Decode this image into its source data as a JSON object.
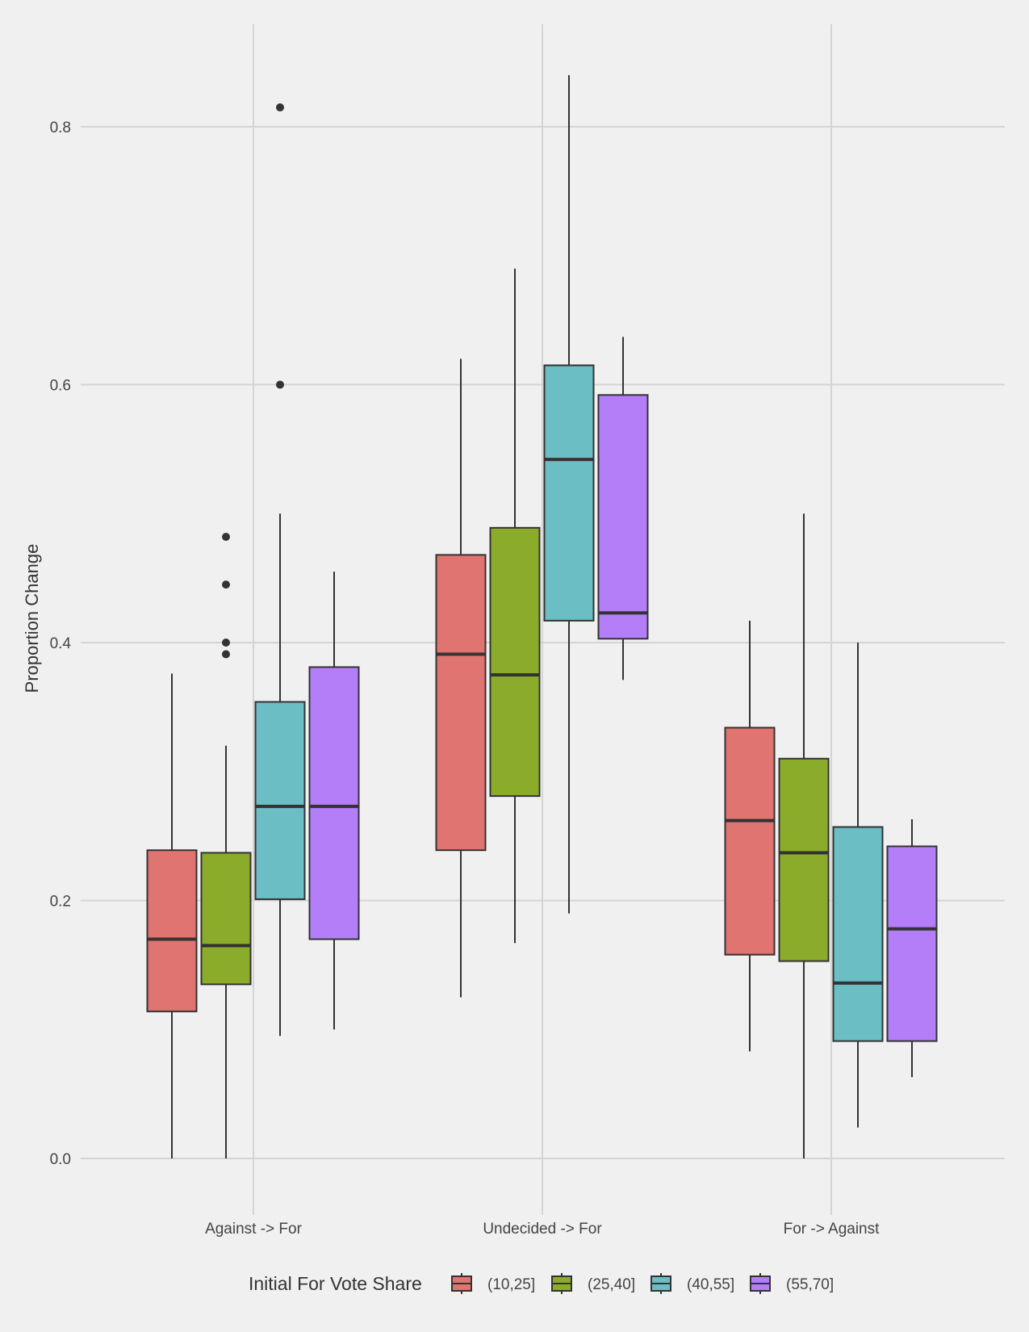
{
  "chart_data": {
    "type": "boxplot",
    "title": "",
    "xlabel": "",
    "ylabel": "Proportion Change",
    "ylim": [
      -0.04,
      0.9
    ],
    "y_ticks": [
      0.0,
      0.2,
      0.4,
      0.6,
      0.8
    ],
    "y_tick_labels": [
      "0.0",
      "0.2",
      "0.4",
      "0.6",
      "0.8"
    ],
    "categories": [
      "Against -> For",
      "Undecided -> For",
      "For -> Against"
    ],
    "grid": true,
    "legend": {
      "title": "Initial For Vote Share",
      "position": "bottom"
    },
    "series": [
      {
        "name": "(10,25]",
        "color": "#e07470",
        "boxes": [
          {
            "lower_whisker": 0.0,
            "q1": 0.114,
            "median": 0.17,
            "q3": 0.239,
            "upper_whisker": 0.376,
            "outliers": []
          },
          {
            "lower_whisker": 0.125,
            "q1": 0.239,
            "median": 0.391,
            "q3": 0.468,
            "upper_whisker": 0.62,
            "outliers": []
          },
          {
            "lower_whisker": 0.083,
            "q1": 0.158,
            "median": 0.262,
            "q3": 0.334,
            "upper_whisker": 0.417,
            "outliers": []
          }
        ]
      },
      {
        "name": "(25,40]",
        "color": "#8aac2a",
        "boxes": [
          {
            "lower_whisker": 0.0,
            "q1": 0.135,
            "median": 0.165,
            "q3": 0.237,
            "upper_whisker": 0.32,
            "outliers": [
              0.391,
              0.4,
              0.445,
              0.482
            ]
          },
          {
            "lower_whisker": 0.167,
            "q1": 0.281,
            "median": 0.375,
            "q3": 0.489,
            "upper_whisker": 0.69,
            "outliers": []
          },
          {
            "lower_whisker": 0.0,
            "q1": 0.153,
            "median": 0.237,
            "q3": 0.31,
            "upper_whisker": 0.5,
            "outliers": []
          }
        ]
      },
      {
        "name": "(40,55]",
        "color": "#6bbec4",
        "boxes": [
          {
            "lower_whisker": 0.095,
            "q1": 0.201,
            "median": 0.273,
            "q3": 0.354,
            "upper_whisker": 0.5,
            "outliers": [
              0.6,
              0.815
            ]
          },
          {
            "lower_whisker": 0.19,
            "q1": 0.417,
            "median": 0.542,
            "q3": 0.615,
            "upper_whisker": 0.84,
            "outliers": []
          },
          {
            "lower_whisker": 0.024,
            "q1": 0.091,
            "median": 0.136,
            "q3": 0.257,
            "upper_whisker": 0.4,
            "outliers": []
          }
        ]
      },
      {
        "name": "(55,70]",
        "color": "#b37ef8",
        "boxes": [
          {
            "lower_whisker": 0.1,
            "q1": 0.17,
            "median": 0.273,
            "q3": 0.381,
            "upper_whisker": 0.455,
            "outliers": []
          },
          {
            "lower_whisker": 0.371,
            "q1": 0.403,
            "median": 0.423,
            "q3": 0.592,
            "upper_whisker": 0.637,
            "outliers": []
          },
          {
            "lower_whisker": 0.063,
            "q1": 0.091,
            "median": 0.178,
            "q3": 0.242,
            "upper_whisker": 0.263,
            "outliers": []
          }
        ]
      }
    ]
  }
}
